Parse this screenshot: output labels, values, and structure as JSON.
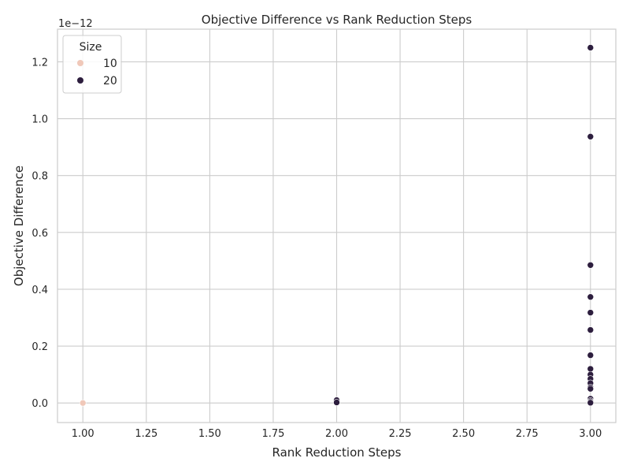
{
  "chart_data": {
    "type": "scatter",
    "title": "Objective Difference vs Rank Reduction Steps",
    "xlabel": "Rank Reduction Steps",
    "ylabel": "Objective Difference",
    "offset_label": "1e−12",
    "xlim": [
      0.9,
      3.1
    ],
    "ylim": [
      -0.0688,
      1.315
    ],
    "x_ticks": [
      1.0,
      1.25,
      1.5,
      1.75,
      2.0,
      2.25,
      2.5,
      2.75,
      3.0
    ],
    "x_tick_labels": [
      "1.00",
      "1.25",
      "1.50",
      "1.75",
      "2.00",
      "2.25",
      "2.50",
      "2.75",
      "3.00"
    ],
    "y_ticks": [
      0.0,
      0.2,
      0.4,
      0.6,
      0.8,
      1.0,
      1.2
    ],
    "y_tick_labels": [
      "0.0",
      "0.2",
      "0.4",
      "0.6",
      "0.8",
      "1.0",
      "1.2"
    ],
    "grid": true,
    "legend": {
      "title": "Size",
      "placement": "top-left",
      "entries": [
        {
          "label": "10",
          "color": "#f0c8b9"
        },
        {
          "label": "20",
          "color": "#2d1e3e"
        }
      ]
    },
    "series": [
      {
        "name": "10",
        "color": "#f0c8b9",
        "points": [
          {
            "x": 1,
            "y": 0.0
          }
        ]
      },
      {
        "name": "20",
        "color": "#2d1e3e",
        "points": [
          {
            "x": 2,
            "y": 0.01
          },
          {
            "x": 2,
            "y": 0.002
          },
          {
            "x": 3,
            "y": 1.25
          },
          {
            "x": 3,
            "y": 0.937
          },
          {
            "x": 3,
            "y": 0.485
          },
          {
            "x": 3,
            "y": 0.373
          },
          {
            "x": 3,
            "y": 0.318
          },
          {
            "x": 3,
            "y": 0.257
          },
          {
            "x": 3,
            "y": 0.168
          },
          {
            "x": 3,
            "y": 0.12
          },
          {
            "x": 3,
            "y": 0.1
          },
          {
            "x": 3,
            "y": 0.085
          },
          {
            "x": 3,
            "y": 0.07
          },
          {
            "x": 3,
            "y": 0.055
          },
          {
            "x": 3,
            "y": 0.05
          },
          {
            "x": 3,
            "y": 0.015
          },
          {
            "x": 3,
            "y": 0.008
          },
          {
            "x": 3,
            "y": 0.004
          },
          {
            "x": 3,
            "y": 0.001
          }
        ]
      }
    ]
  }
}
